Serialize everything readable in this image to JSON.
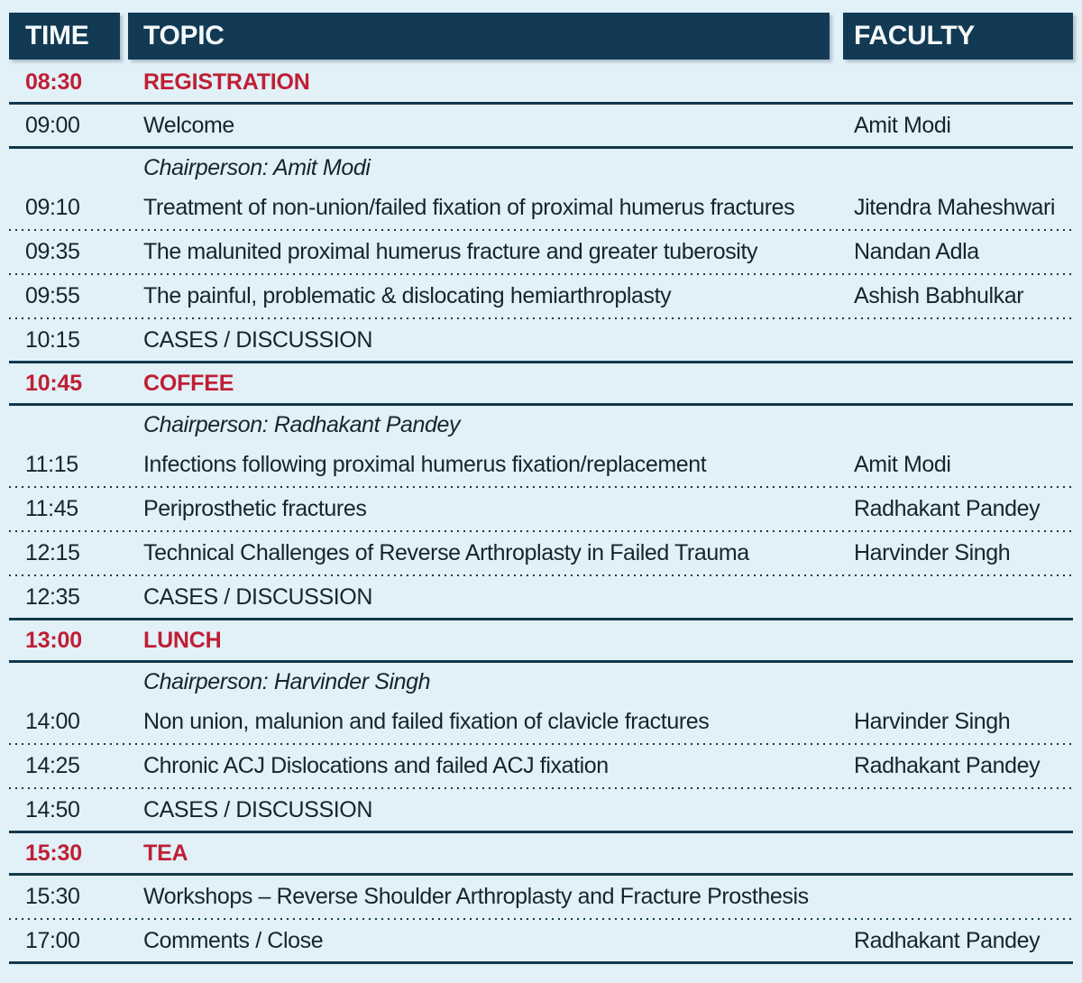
{
  "theme": {
    "header_bg": "#123a54",
    "page_bg": "#e2f0f8",
    "accent_red": "#bf1f34",
    "line_color": "#14384c",
    "text_color": "#16242e"
  },
  "table": {
    "headers": [
      {
        "label": "TIME"
      },
      {
        "label": "TOPIC"
      },
      {
        "label": "FACULTY"
      }
    ]
  },
  "schedule": {
    "rows": [
      {
        "time": "08:30",
        "topic": "REGISTRATION",
        "faculty": "",
        "type": "break",
        "sep": "solid"
      },
      {
        "time": "09:00",
        "topic": "Welcome",
        "faculty": "Amit Modi",
        "type": "normal",
        "sep": "solid"
      },
      {
        "time": "",
        "topic": "Chairperson: Amit Modi",
        "faculty": "",
        "type": "chair",
        "sep": "none"
      },
      {
        "time": "09:10",
        "topic": "Treatment of non-union/failed fixation of proximal humerus fractures",
        "faculty": "Jitendra Maheshwari",
        "type": "normal",
        "sep": "dotted"
      },
      {
        "time": "09:35",
        "topic": "The malunited proximal humerus fracture and greater tuberosity",
        "faculty": "Nandan Adla",
        "type": "normal",
        "sep": "dotted"
      },
      {
        "time": "09:55",
        "topic": "The painful, problematic & dislocating hemiarthroplasty",
        "faculty": "Ashish Babhulkar",
        "type": "normal",
        "sep": "dotted"
      },
      {
        "time": "10:15",
        "topic": "CASES / DISCUSSION",
        "faculty": "",
        "type": "normal",
        "sep": "solid"
      },
      {
        "time": "10:45",
        "topic": "COFFEE",
        "faculty": "",
        "type": "break",
        "sep": "solid"
      },
      {
        "time": "",
        "topic": "Chairperson: Radhakant Pandey",
        "faculty": "",
        "type": "chair",
        "sep": "none"
      },
      {
        "time": "11:15",
        "topic": "Infections following proximal humerus fixation/replacement",
        "faculty": "Amit Modi",
        "type": "normal",
        "sep": "dotted"
      },
      {
        "time": "11:45",
        "topic": "Periprosthetic fractures",
        "faculty": "Radhakant Pandey",
        "type": "normal",
        "sep": "dotted"
      },
      {
        "time": "12:15",
        "topic": "Technical Challenges of Reverse Arthroplasty in Failed Trauma",
        "faculty": "Harvinder Singh",
        "type": "normal",
        "sep": "dotted"
      },
      {
        "time": "12:35",
        "topic": "CASES / DISCUSSION",
        "faculty": "",
        "type": "normal",
        "sep": "solid"
      },
      {
        "time": "13:00",
        "topic": "LUNCH",
        "faculty": "",
        "type": "break",
        "sep": "solid"
      },
      {
        "time": "",
        "topic": "Chairperson: Harvinder Singh",
        "faculty": "",
        "type": "chair",
        "sep": "none"
      },
      {
        "time": "14:00",
        "topic": "Non union, malunion and failed fixation of clavicle fractures",
        "faculty": "Harvinder Singh",
        "type": "normal",
        "sep": "dotted"
      },
      {
        "time": "14:25",
        "topic": "Chronic ACJ Dislocations and failed ACJ fixation",
        "faculty": "Radhakant Pandey",
        "type": "normal",
        "sep": "dotted"
      },
      {
        "time": "14:50",
        "topic": "CASES / DISCUSSION",
        "faculty": "",
        "type": "normal",
        "sep": "solid"
      },
      {
        "time": "15:30",
        "topic": "TEA",
        "faculty": "",
        "type": "break",
        "sep": "solid"
      },
      {
        "time": "15:30",
        "topic": "Workshops – Reverse Shoulder Arthroplasty and Fracture Prosthesis",
        "faculty": "",
        "type": "normal",
        "sep": "dotted"
      },
      {
        "time": "17:00",
        "topic": "Comments / Close",
        "faculty": "Radhakant Pandey",
        "type": "normal",
        "sep": "solid"
      }
    ]
  }
}
